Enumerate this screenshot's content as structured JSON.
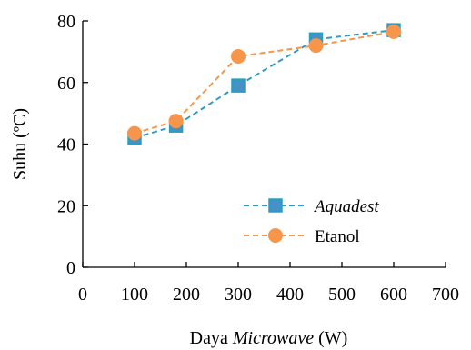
{
  "chart_data": {
    "type": "line",
    "title": "",
    "xlabel_prefix": "Daya ",
    "xlabel_italic": "Microwave",
    "xlabel_suffix": " (W)",
    "ylabel": "Suhu (ºC)",
    "xlim": [
      0,
      700
    ],
    "ylim": [
      0,
      80
    ],
    "xticks": [
      0,
      100,
      200,
      300,
      400,
      500,
      600,
      700
    ],
    "yticks": [
      0,
      20,
      40,
      60,
      80
    ],
    "xtick_labels": [
      "0",
      "100",
      "200",
      "300",
      "400",
      "500",
      "600",
      "700"
    ],
    "ytick_labels": [
      "0",
      "20",
      "40",
      "60",
      "80"
    ],
    "grid": false,
    "legend_position": "bottom-right",
    "series": [
      {
        "name": "Aquadest",
        "italic": true,
        "marker": "square",
        "color": "#2e9bc4",
        "marker_fill": "#4a90c8",
        "marker_stroke": "#2a9dc0",
        "x": [
          100,
          180,
          300,
          450,
          600
        ],
        "y": [
          42,
          46,
          59,
          74,
          77
        ]
      },
      {
        "name": "Etanol",
        "italic": false,
        "marker": "circle",
        "color": "#f7964a",
        "marker_fill": "#f7964a",
        "marker_stroke": "#f7964a",
        "x": [
          100,
          180,
          300,
          450,
          600
        ],
        "y": [
          43.5,
          47.5,
          68.5,
          72,
          76.5
        ]
      }
    ]
  }
}
